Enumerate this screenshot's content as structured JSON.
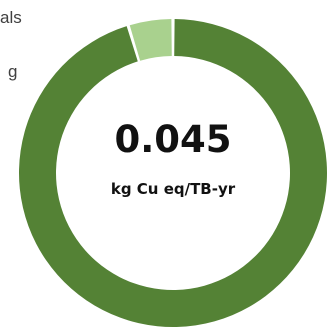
{
  "legend": {
    "item_1": "als",
    "item_2": "g"
  },
  "center": {
    "value": "0.045",
    "unit": "kg Cu eq/TB-yr"
  },
  "chart_data": {
    "type": "pie",
    "variant": "donut",
    "slices": [
      {
        "label": "als",
        "value": 95.3,
        "color": "#548235"
      },
      {
        "label": "g",
        "value": 4.7,
        "color": "#a9d18e"
      }
    ],
    "start_angle_deg": 0,
    "legend_placement": "left"
  }
}
